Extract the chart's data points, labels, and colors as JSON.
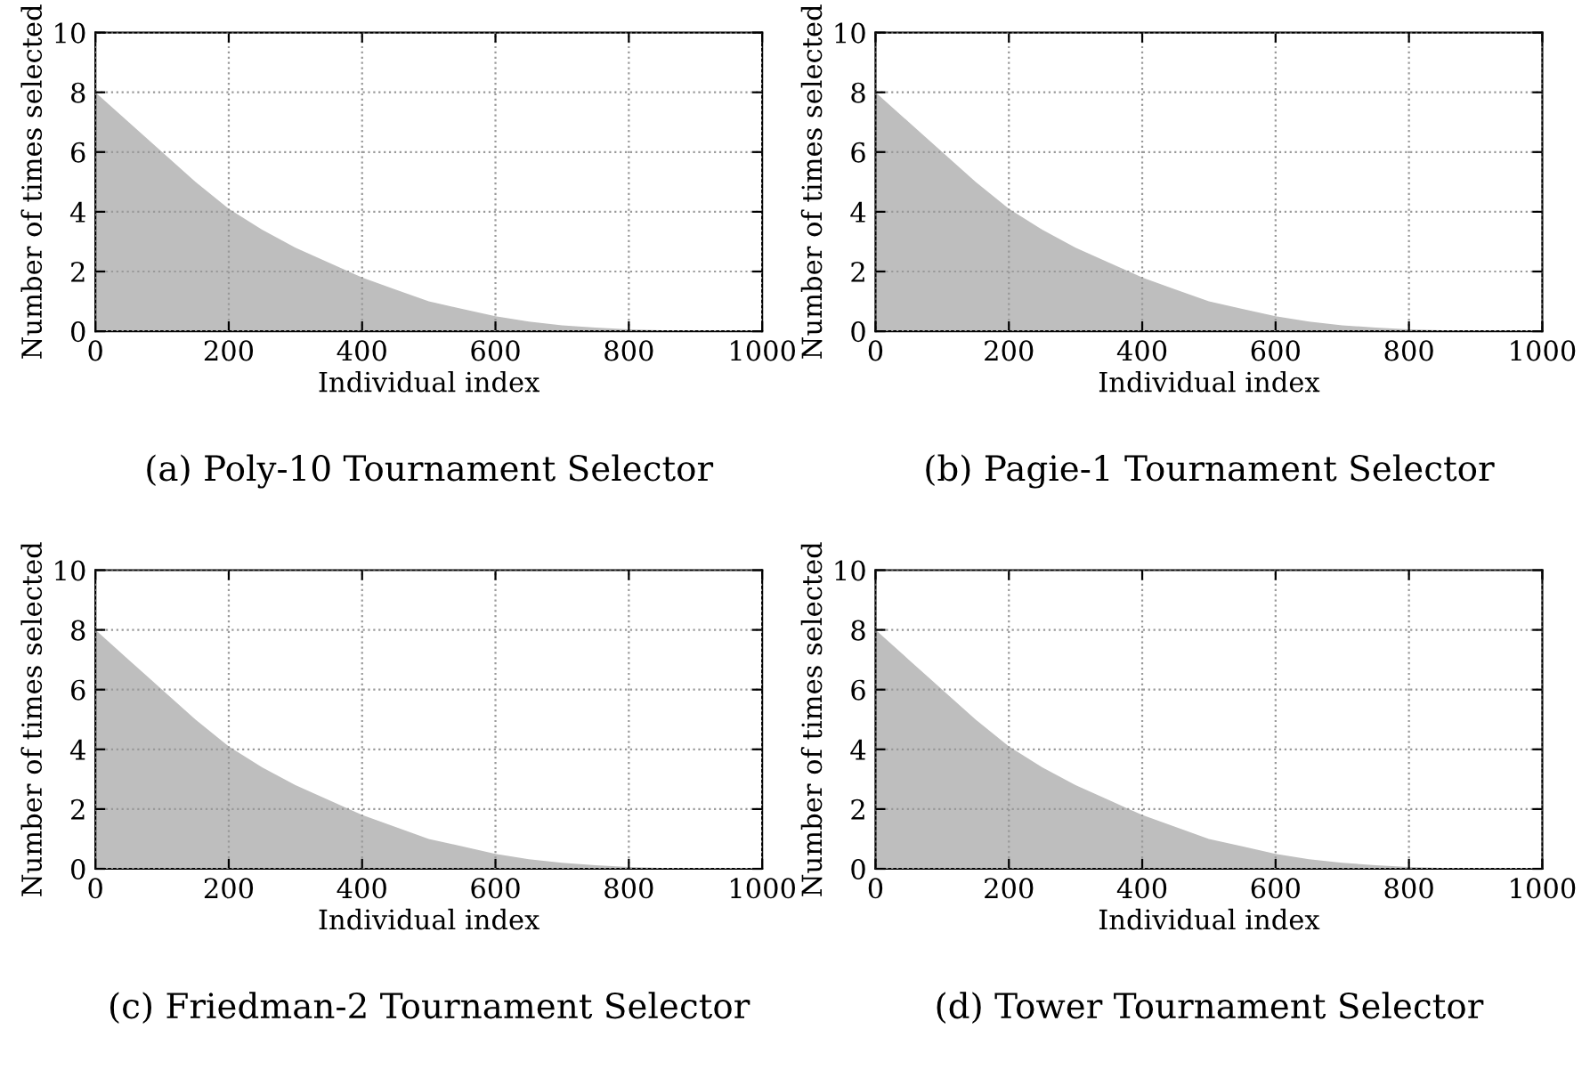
{
  "chart_data": [
    {
      "type": "area",
      "title": "(a) Poly-10 Tournament Selector",
      "xlabel": "Individual index",
      "ylabel": "Number of times selected",
      "x": [
        0,
        50,
        100,
        150,
        200,
        250,
        300,
        350,
        400,
        450,
        500,
        550,
        600,
        650,
        700,
        750,
        800,
        850,
        900,
        950,
        1000
      ],
      "values": [
        8.0,
        7.0,
        6.0,
        5.0,
        4.1,
        3.4,
        2.8,
        2.3,
        1.8,
        1.4,
        1.0,
        0.75,
        0.5,
        0.32,
        0.2,
        0.12,
        0.06,
        0.03,
        0.01,
        0.0,
        0.0
      ],
      "color": "#bebebe",
      "xlim": [
        0,
        1000
      ],
      "ylim": [
        0,
        10
      ],
      "xticks": [
        0,
        200,
        400,
        600,
        800,
        1000
      ],
      "yticks": [
        0,
        2,
        4,
        6,
        8,
        10
      ],
      "grid": true
    },
    {
      "type": "area",
      "title": "(b) Pagie-1 Tournament Selector",
      "xlabel": "Individual index",
      "ylabel": "Number of times selected",
      "x": [
        0,
        50,
        100,
        150,
        200,
        250,
        300,
        350,
        400,
        450,
        500,
        550,
        600,
        650,
        700,
        750,
        800,
        850,
        900,
        950,
        1000
      ],
      "values": [
        8.0,
        7.0,
        6.0,
        5.0,
        4.1,
        3.4,
        2.8,
        2.3,
        1.8,
        1.4,
        1.0,
        0.75,
        0.5,
        0.32,
        0.2,
        0.12,
        0.06,
        0.03,
        0.01,
        0.0,
        0.0
      ],
      "color": "#bebebe",
      "xlim": [
        0,
        1000
      ],
      "ylim": [
        0,
        10
      ],
      "xticks": [
        0,
        200,
        400,
        600,
        800,
        1000
      ],
      "yticks": [
        0,
        2,
        4,
        6,
        8,
        10
      ],
      "grid": true
    },
    {
      "type": "area",
      "title": "(c) Friedman-2 Tournament Selector",
      "xlabel": "Individual index",
      "ylabel": "Number of times selected",
      "x": [
        0,
        50,
        100,
        150,
        200,
        250,
        300,
        350,
        400,
        450,
        500,
        550,
        600,
        650,
        700,
        750,
        800,
        850,
        900,
        950,
        1000
      ],
      "values": [
        8.0,
        7.0,
        6.0,
        5.0,
        4.1,
        3.4,
        2.8,
        2.3,
        1.8,
        1.4,
        1.0,
        0.75,
        0.5,
        0.32,
        0.2,
        0.12,
        0.06,
        0.03,
        0.01,
        0.0,
        0.0
      ],
      "color": "#bebebe",
      "xlim": [
        0,
        1000
      ],
      "ylim": [
        0,
        10
      ],
      "xticks": [
        0,
        200,
        400,
        600,
        800,
        1000
      ],
      "yticks": [
        0,
        2,
        4,
        6,
        8,
        10
      ],
      "grid": true
    },
    {
      "type": "area",
      "title": "(d) Tower Tournament Selector",
      "xlabel": "Individual index",
      "ylabel": "Number of times selected",
      "x": [
        0,
        50,
        100,
        150,
        200,
        250,
        300,
        350,
        400,
        450,
        500,
        550,
        600,
        650,
        700,
        750,
        800,
        850,
        900,
        950,
        1000
      ],
      "values": [
        8.0,
        7.0,
        6.0,
        5.0,
        4.1,
        3.4,
        2.8,
        2.3,
        1.8,
        1.4,
        1.0,
        0.75,
        0.5,
        0.32,
        0.2,
        0.12,
        0.06,
        0.03,
        0.01,
        0.0,
        0.0
      ],
      "color": "#bebebe",
      "xlim": [
        0,
        1000
      ],
      "ylim": [
        0,
        10
      ],
      "xticks": [
        0,
        200,
        400,
        600,
        800,
        1000
      ],
      "yticks": [
        0,
        2,
        4,
        6,
        8,
        10
      ],
      "grid": true
    }
  ]
}
